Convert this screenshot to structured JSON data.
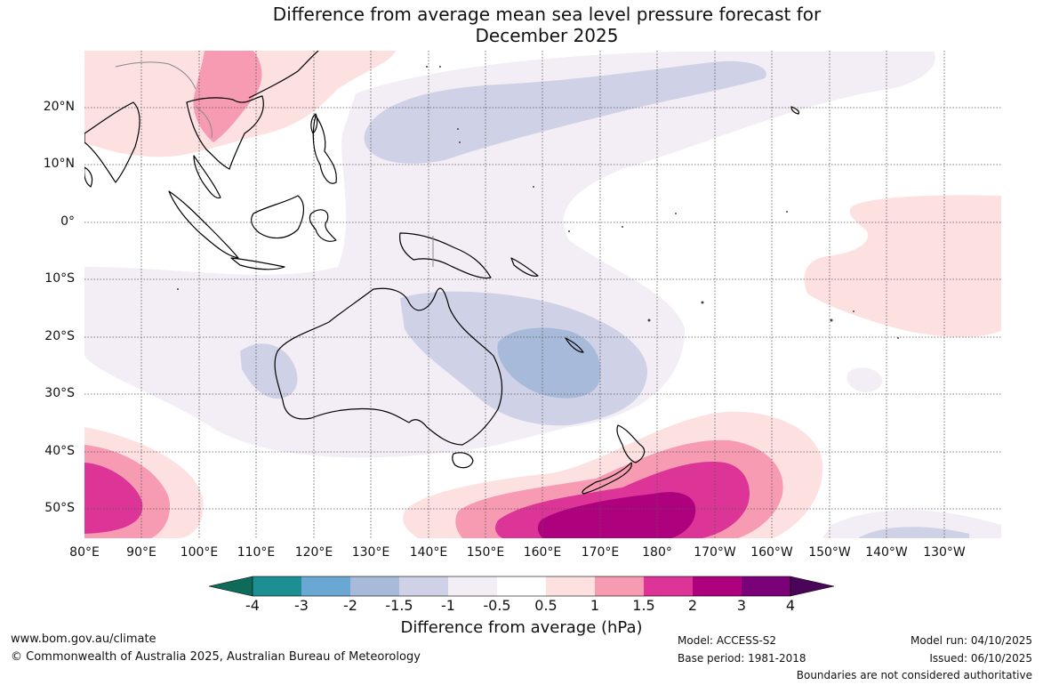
{
  "title": {
    "line1": "Difference from average mean sea level pressure forecast for",
    "line2": "December 2025"
  },
  "map": {
    "lat_labels": [
      "20°N",
      "10°N",
      "0°",
      "10°S",
      "20°S",
      "30°S",
      "40°S",
      "50°S"
    ],
    "lon_labels": [
      "80°E",
      "90°E",
      "100°E",
      "110°E",
      "120°E",
      "130°E",
      "140°E",
      "150°E",
      "160°E",
      "170°E",
      "180°",
      "170°W",
      "160°W",
      "150°W",
      "140°W",
      "130°W"
    ],
    "extent": {
      "lon_range": [
        80,
        240
      ],
      "lat_range": [
        -55,
        30
      ]
    }
  },
  "colorbar": {
    "ticks": [
      "-4",
      "-3",
      "-2",
      "-1.5",
      "-1",
      "-0.5",
      "0.5",
      "1",
      "1.5",
      "2",
      "3",
      "4"
    ],
    "colors": {
      "below_-4": "#0d6b5a",
      "-4_to_-3": "#1d8f93",
      "-3_to_-2": "#6aa7d2",
      "-2_to_-1.5": "#a7bada",
      "-1.5_to_-1": "#cfd1e6",
      "-1_to_-0.5": "#f3edf5",
      "-0.5_to_0.5": "#ffffff",
      "0.5_to_1": "#fde0e0",
      "1_to_1.5": "#f79bb3",
      "1.5_to_2": "#dd3497",
      "2_to_3": "#ae017e",
      "3_to_4": "#7a0177",
      "above_4": "#4a0559"
    },
    "label": "Difference from average (hPa)"
  },
  "footer": {
    "url": "www.bom.gov.au/climate",
    "copyright": "© Commonwealth of Australia 2025, Australian Bureau of Meteorology",
    "model": "Model: ACCESS-S2",
    "base_period": "Base period: 1981-2018",
    "model_run": "Model run: 04/10/2025",
    "issued": "Issued: 06/10/2025",
    "boundaries": "Boundaries are not considered authoritative"
  }
}
